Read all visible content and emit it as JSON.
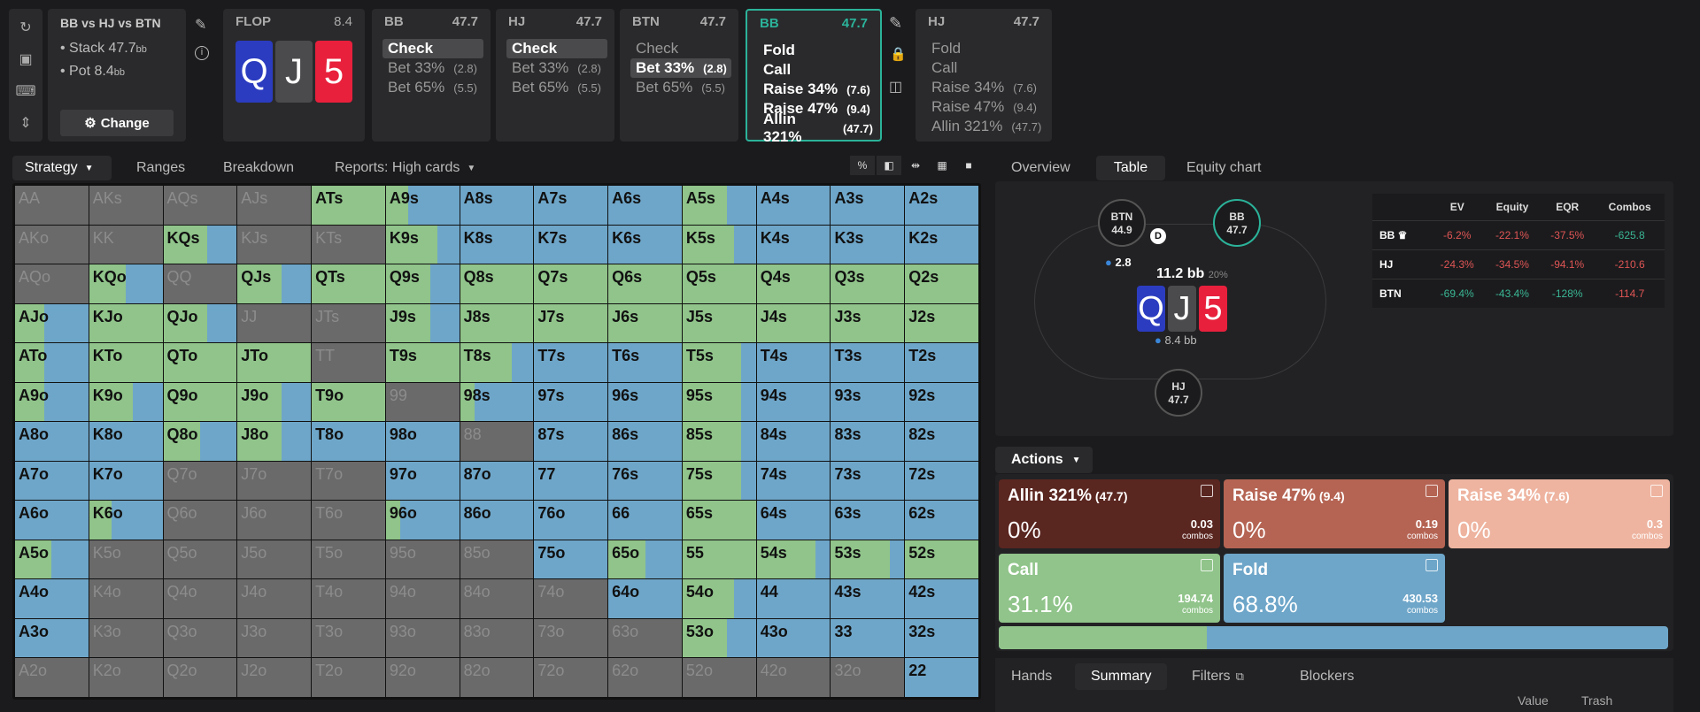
{
  "scenario": {
    "title": "BB vs HJ vs BTN",
    "stack_label": "Stack 47.7",
    "stack_unit": "bb",
    "pot_label": "Pot 8.4",
    "pot_unit": "bb",
    "change_label": "Change"
  },
  "flop": {
    "label": "FLOP",
    "pot": "8.4",
    "cards": [
      {
        "rank": "Q",
        "color": "#2b3cc0"
      },
      {
        "rank": "J",
        "color": "#4b4b4d"
      },
      {
        "rank": "5",
        "color": "#e8203c"
      }
    ]
  },
  "players": [
    {
      "name": "BB",
      "stack": "47.7",
      "options": [
        {
          "label": "Check",
          "size": "",
          "sel": true
        },
        {
          "label": "Bet 33%",
          "size": "(2.8)"
        },
        {
          "label": "Bet 65%",
          "size": "(5.5)"
        }
      ]
    },
    {
      "name": "HJ",
      "stack": "47.7",
      "options": [
        {
          "label": "Check",
          "size": "",
          "sel": true
        },
        {
          "label": "Bet 33%",
          "size": "(2.8)"
        },
        {
          "label": "Bet 65%",
          "size": "(5.5)"
        }
      ]
    },
    {
      "name": "BTN",
      "stack": "47.7",
      "options": [
        {
          "label": "Check",
          "size": ""
        },
        {
          "label": "Bet 33%",
          "size": "(2.8)",
          "sel": true
        },
        {
          "label": "Bet 65%",
          "size": "(5.5)"
        }
      ]
    },
    {
      "name": "BB",
      "stack": "47.7",
      "active": true,
      "options": [
        {
          "label": "Fold",
          "size": "",
          "bold": true
        },
        {
          "label": "Call",
          "size": "",
          "bold": true
        },
        {
          "label": "Raise 34%",
          "size": "(7.6)",
          "bold": true
        },
        {
          "label": "Raise 47%",
          "size": "(9.4)",
          "bold": true
        },
        {
          "label": "Allin 321%",
          "size": "(47.7)",
          "bold": true
        }
      ]
    },
    {
      "name": "HJ",
      "stack": "47.7",
      "options": [
        {
          "label": "Fold",
          "size": ""
        },
        {
          "label": "Call",
          "size": ""
        },
        {
          "label": "Raise 34%",
          "size": "(7.6)"
        },
        {
          "label": "Raise 47%",
          "size": "(9.4)"
        },
        {
          "label": "Allin 321%",
          "size": "(47.7)"
        }
      ]
    }
  ],
  "left_tabs": [
    "Strategy",
    "Ranges",
    "Breakdown",
    "Reports: High cards"
  ],
  "right_tabs": [
    "Overview",
    "Table",
    "Equity chart"
  ],
  "colors": {
    "call": "#90c48a",
    "fold": "#6ea6c9",
    "gray": "#6a6a6a",
    "allin": "#5a2620",
    "raise47": "#b56453",
    "raise34": "#eeb4a0"
  },
  "grid_ranks": [
    "A",
    "K",
    "Q",
    "J",
    "T",
    "9",
    "8",
    "7",
    "6",
    "5",
    "4",
    "3",
    "2"
  ],
  "grid_call_fraction": [
    [
      -1,
      -1,
      -1,
      -1,
      1,
      0.3,
      0,
      0,
      0,
      0.6,
      0,
      0,
      0
    ],
    [
      -1,
      -1,
      0.6,
      -1,
      -1,
      0.7,
      0,
      0,
      0,
      0.7,
      0,
      0,
      0
    ],
    [
      -1,
      0.5,
      -1,
      0.6,
      1,
      0.6,
      1,
      1,
      1,
      1,
      1,
      1,
      1
    ],
    [
      0.4,
      1,
      0.6,
      -1,
      -1,
      0.6,
      1,
      1,
      1,
      1,
      1,
      1,
      1
    ],
    [
      0.4,
      1,
      1,
      1,
      -1,
      1,
      0.7,
      0,
      0,
      0.8,
      0,
      0,
      0
    ],
    [
      0.4,
      0.6,
      1,
      0.6,
      1,
      -1,
      0.2,
      0,
      0,
      0.8,
      0,
      0,
      0
    ],
    [
      0,
      0,
      0.5,
      0.6,
      0,
      0,
      -1,
      0,
      0,
      0.8,
      0,
      0,
      0
    ],
    [
      0,
      0,
      -1,
      -1,
      -1,
      0,
      0,
      0,
      0,
      0.8,
      0,
      0,
      0
    ],
    [
      0,
      0.3,
      -1,
      -1,
      -1,
      0.2,
      0,
      0,
      0,
      1,
      0,
      0,
      0
    ],
    [
      0.5,
      -1,
      -1,
      -1,
      -1,
      -1,
      -1,
      0,
      0.5,
      1,
      0.8,
      0.8,
      1
    ],
    [
      0,
      -1,
      -1,
      -1,
      -1,
      -1,
      -1,
      -1,
      0,
      0.7,
      0,
      0,
      0
    ],
    [
      0,
      -1,
      -1,
      -1,
      -1,
      -1,
      -1,
      -1,
      -1,
      0.6,
      0,
      0,
      0
    ],
    [
      -1,
      -1,
      -1,
      -1,
      -1,
      -1,
      -1,
      -1,
      -1,
      -1,
      -1,
      -1,
      0
    ]
  ],
  "table": {
    "btn_label": "BTN",
    "btn_stack": "44.9",
    "bb_label": "BB",
    "bb_stack": "47.7",
    "hj_label": "HJ",
    "hj_stack": "47.7",
    "dealer": "D",
    "bet": "2.8",
    "pot_main": "11.2 bb",
    "pot_pct": "20%",
    "pot_sub": "8.4 bb"
  },
  "ev_table": {
    "headers": [
      "",
      "EV",
      "Equity",
      "EQR",
      "Combos"
    ],
    "rows": [
      {
        "name": "BB ♛",
        "ev": "-6.2%",
        "equity": "-22.1%",
        "eqr": "-37.5%",
        "combos": "-625.8",
        "combos_pos": true
      },
      {
        "name": "HJ",
        "ev": "-24.3%",
        "equity": "-34.5%",
        "eqr": "-94.1%",
        "combos": "-210.6",
        "combos_pos": false
      },
      {
        "name": "BTN",
        "ev": "-69.4%",
        "equity": "-43.4%",
        "eqr": "-128%",
        "combos": "-114.7",
        "combos_pos": false
      }
    ]
  },
  "actions_label": "Actions",
  "actions": [
    {
      "label": "Allin 321%",
      "size": "(47.7)",
      "pct": "0%",
      "combos": "0.03",
      "unit": "combos"
    },
    {
      "label": "Raise 47%",
      "size": "(9.4)",
      "pct": "0%",
      "combos": "0.19",
      "unit": "combos"
    },
    {
      "label": "Raise 34%",
      "size": "(7.6)",
      "pct": "0%",
      "combos": "0.3",
      "unit": "combos"
    },
    {
      "label": "Call",
      "size": "",
      "pct": "31.1%",
      "combos": "194.74",
      "unit": "combos"
    },
    {
      "label": "Fold",
      "size": "",
      "pct": "68.8%",
      "combos": "430.53",
      "unit": "combos"
    }
  ],
  "call_share": 0.311,
  "bottom_tabs": [
    "Hands",
    "Summary",
    "Filters",
    "Blockers"
  ],
  "footer_cols": [
    "Value",
    "Trash"
  ]
}
